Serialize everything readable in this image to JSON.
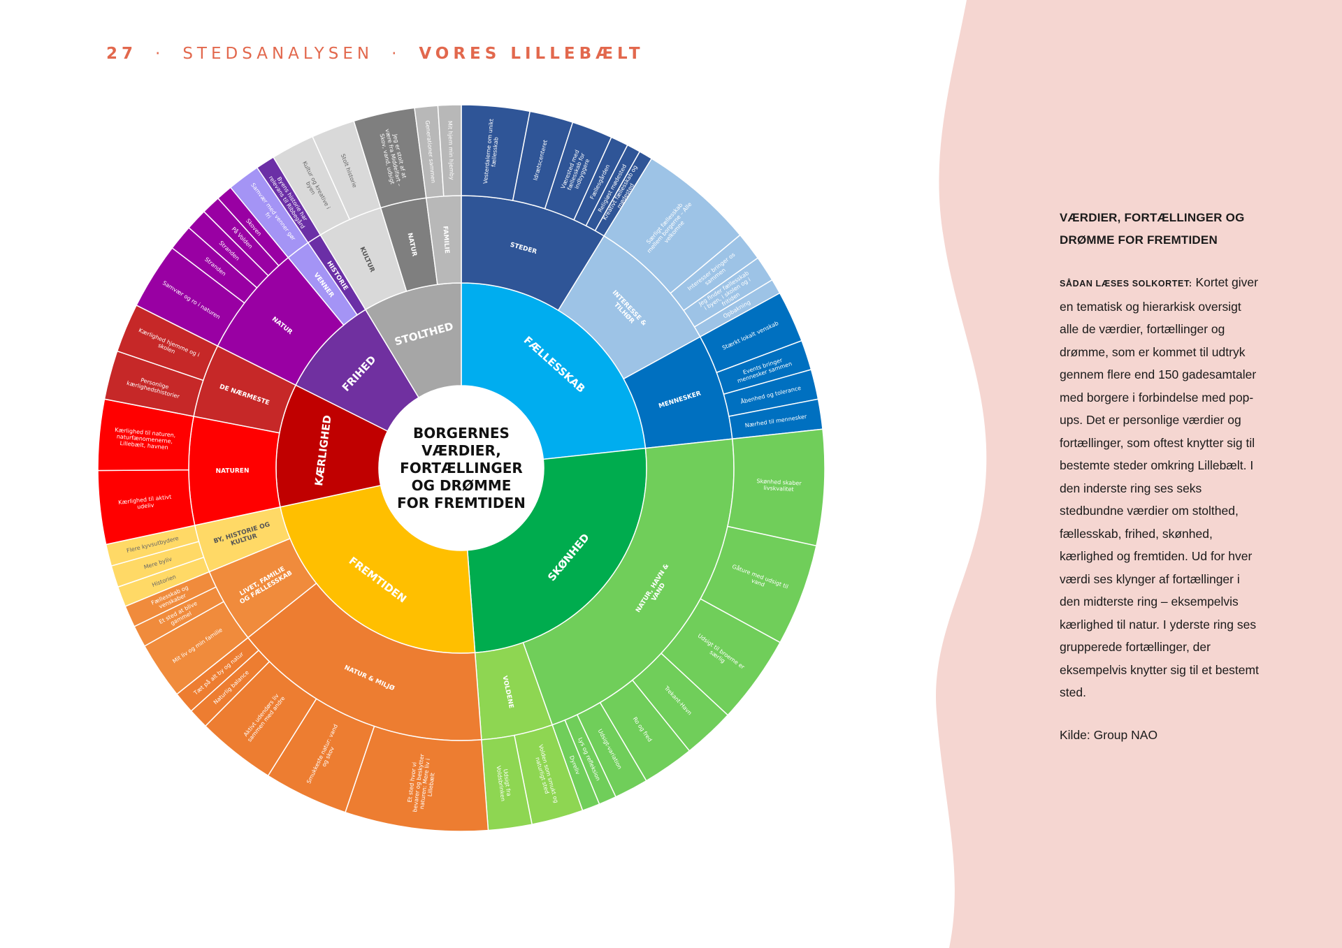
{
  "header": {
    "page_number": "27",
    "section": "STEDSANALYSEN",
    "brand": "VORES LILLEBÆLT"
  },
  "sidebar": {
    "title": "VÆRDIER, FORTÆLLINGER OG DRØMME FOR FREMTIDEN",
    "lead_label": "Sådan læses solkortet:",
    "body": "Kortet giver en tematisk og hierarkisk oversigt alle de værdier, fortællinger og drømme, som er kommet til udtryk gennem flere end 150 gadesamtaler med borgere i forbindelse med pop-ups. Det er personlige værdier og fortællinger, som oftest knytter sig til bestemte steder omkring Lillebælt. I den inderste ring ses seks stedbundne værdier om stolthed, fællesskab, frihed, skønhed, kærlighed og fremtiden. Ud for hver værdi ses klynger af fortællinger i den midterste ring – eksempelvis kærlighed til natur. I yderste ring ses grupperede fortællinger, der eksempelvis knytter sig til et bestemt sted.",
    "source": "Kilde: Group NAO"
  },
  "center_title": [
    "BORGERNES",
    "VÆRDIER,",
    "FORTÆLLINGER",
    "OG DRØMME",
    "FOR FREMTIDEN"
  ],
  "colors": {
    "accent": "#e2684d",
    "pink_panel": "#f5d6d1",
    "stolthed": "#a6a6a6",
    "faellesskab": "#00adef",
    "skonhed": "#00ac4e",
    "fremtiden": "#ffbf00",
    "kaerlighed": "#c00000",
    "frihed": "#7030a0"
  },
  "chart_data": {
    "type": "sunburst",
    "values": [
      {
        "name": "FÆLLESSKAB",
        "color": "#00adef",
        "children": [
          {
            "name": "STEDER",
            "color": "#2f5597",
            "children": [
              {
                "name": "Vesterdalerne om unikt fællesskab",
                "value": 5
              },
              {
                "name": "Idrætscenteret",
                "value": 3.2
              },
              {
                "name": "Værested med fællesskab for indbyggere",
                "value": 3
              },
              {
                "name": "Fællesgården",
                "value": 1.3
              },
              {
                "name": "Religiøst mødested",
                "value": 1
              },
              {
                "name": "Kreativt fællesskab og mødested",
                "value": 1
              }
            ]
          },
          {
            "name": "INTERESSE & TILHØR",
            "color": "#9dc3e6",
            "children": [
              {
                "name": "Særligt fællesskab mellem borgerne – Alle velkomne",
                "value": 8.5
              },
              {
                "name": "Interesser bringer os sammen",
                "value": 2.1
              },
              {
                "name": "Jeg finder fællesskab i byen, i skolen og i fritiden",
                "value": 1.9
              },
              {
                "name": "Opbakning",
                "value": 1.1
              }
            ]
          },
          {
            "name": "MENNESKER",
            "color": "#0070c0",
            "children": [
              {
                "name": "Stærkt lokalt venskab",
                "value": 3.8
              },
              {
                "name": "Events bringer mennesker sammen",
                "value": 2.2
              },
              {
                "name": "Åbenhed og tolerance",
                "value": 2.2
              },
              {
                "name": "Nærhed til mennesker",
                "value": 2.2
              }
            ]
          }
        ]
      },
      {
        "name": "SKØNHED",
        "color": "#00ac4e",
        "children": [
          {
            "name": "NATUR, HAVN & VAND",
            "color": "#70ce5a",
            "children": [
              {
                "name": "Skønhed skaber livskvalitet",
                "value": 8.5
              },
              {
                "name": "Gåture med udsigt til vand",
                "value": 7.5
              },
              {
                "name": "Udsigt til broerne er særlig",
                "value": 6.5
              },
              {
                "name": "Trekant-Havn",
                "value": 3.8
              },
              {
                "name": "Ro og fred",
                "value": 3.8
              },
              {
                "name": "Udsigt-variation",
                "value": 2.5
              },
              {
                "name": "Lys og refleksion",
                "value": 1.3
              },
              {
                "name": "Dyreliv",
                "value": 1.3
              }
            ]
          },
          {
            "name": "VOLDENE",
            "color": "#8ed652",
            "children": [
              {
                "name": "Volden som smukt og naturligt sted",
                "value": 3.8
              },
              {
                "name": "Udsigt fra Voldsbrinken",
                "value": 3.2
              }
            ]
          }
        ]
      },
      {
        "name": "FREMTIDEN",
        "color": "#ffbf00",
        "children": [
          {
            "name": "NATUR & MILJØ",
            "color": "#ed7d31",
            "children": [
              {
                "name": "Et sted hvor vi bevarer og beskytter naturen: Mere liv i Lillebælt",
                "value": 10.5
              },
              {
                "name": "Smukkeste natur: vand og skov",
                "value": 6.2
              },
              {
                "name": "Aktivt udendørs liv sammen med andre",
                "value": 5.8
              },
              {
                "name": "Naturlig balance",
                "value": 1.5
              },
              {
                "name": "Tæt på alt by og natur",
                "value": 1.6
              }
            ]
          },
          {
            "name": "LIVET, FAMILIE OG FÆLLESSKAB",
            "color": "#f08b3c",
            "children": [
              {
                "name": "Mit liv og min familie",
                "value": 4.2
              },
              {
                "name": "Et sted at blive gammel",
                "value": 1.6
              },
              {
                "name": "Fællesskab og venskaber",
                "value": 1.6
              }
            ]
          },
          {
            "name": "BY, HISTORIE OG KULTUR",
            "color": "#ffd966",
            "children": [
              {
                "name": "Historien",
                "value": 1.5
              },
              {
                "name": "Mere byliv",
                "value": 1.6
              },
              {
                "name": "Flere kyvsutbydere",
                "value": 1.6
              }
            ]
          }
        ]
      },
      {
        "name": "KÆRLIGHED",
        "color": "#c00000",
        "children": [
          {
            "name": "NATUREN",
            "color": "#ff0000",
            "children": [
              {
                "name": "Kærlighed til aktivt udeliv",
                "value": 5.4
              },
              {
                "name": "Kærlighed til naturen, naturfænomenerne, Lillebælt, havnen",
                "value": 5.2
              }
            ]
          },
          {
            "name": "DE NÆRMESTE",
            "color": "#c62828",
            "children": [
              {
                "name": "Personlige kærlighedshistorier",
                "value": 3.6
              },
              {
                "name": "Kærlighed hjemme og i skolen",
                "value": 3.6
              }
            ]
          }
        ]
      },
      {
        "name": "FRIHED",
        "color": "#7030a0",
        "children": [
          {
            "name": "NATUR",
            "color": "#9900a3",
            "children": [
              {
                "name": "Samvær og ro i naturen",
                "value": 4.9
              },
              {
                "name": "Stranden",
                "value": 1.9
              },
              {
                "name": "Stranden",
                "value": 1.6
              },
              {
                "name": "På Volden",
                "value": 1.4
              },
              {
                "name": "Skoven",
                "value": 1.2
              }
            ]
          },
          {
            "name": "VENNER",
            "color": "#a494f5",
            "children": [
              {
                "name": "Samvær med venner gør fri",
                "value": 2.4
              }
            ]
          },
          {
            "name": "HISTORIE",
            "color": "#6b2fa6",
            "children": [
              {
                "name": "Byens historie har relevans til Ribbegård",
                "value": 1.4
              }
            ]
          }
        ]
      },
      {
        "name": "STOLTHED",
        "color": "#a6a6a6",
        "children": [
          {
            "name": "KULTUR",
            "color": "#d9d9d9",
            "children": [
              {
                "name": "Kultur og kreative i byen",
                "value": 3.2
              },
              {
                "name": "Stolt historie",
                "value": 3.2
              }
            ]
          },
          {
            "name": "NATUR",
            "color": "#7f7f7f",
            "children": [
              {
                "name": "Jeg er stolt af at være fra Middelfart – Skov, vand, udsigt",
                "value": 4.5
              }
            ]
          },
          {
            "name": "FAMILIE",
            "color": "#b8b8b8",
            "children": [
              {
                "name": "Generationer sammen",
                "value": 1.7
              },
              {
                "name": "Mit hjem min hjemby",
                "value": 1.7
              }
            ]
          }
        ]
      }
    ]
  }
}
